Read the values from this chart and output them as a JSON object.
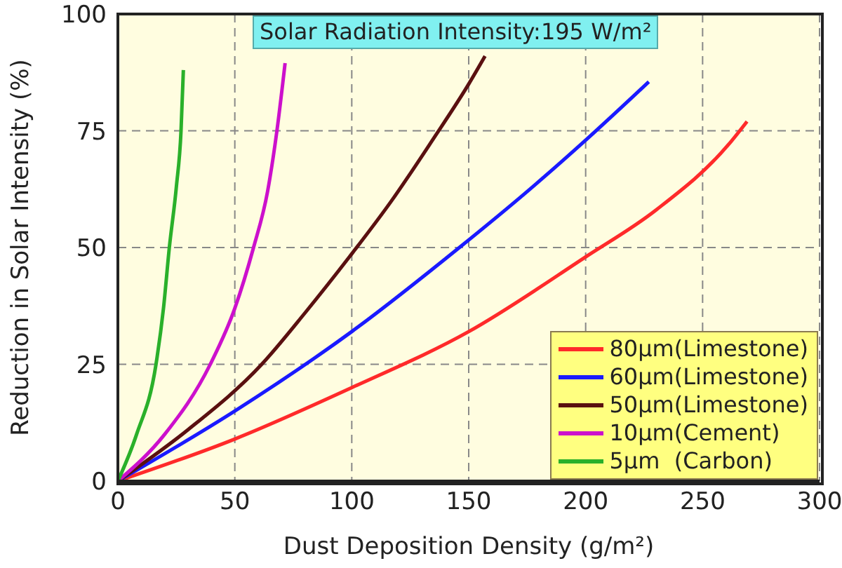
{
  "chart_data": {
    "type": "line",
    "title": "Solar Radiation Intensity:195 W/m²",
    "xlabel": "Dust Deposition Density (g/m²)",
    "ylabel": "Reduction in Solar Intensity (%)",
    "xlim": [
      0,
      300
    ],
    "ylim": [
      0,
      100
    ],
    "xticks": [
      0,
      50,
      100,
      150,
      200,
      250,
      300
    ],
    "yticks": [
      0,
      25,
      50,
      75,
      100
    ],
    "grid": true,
    "legend": "bottom right",
    "marker": "none",
    "line_style": "solid",
    "series": [
      {
        "name": "80μm(Limestone)",
        "color": "#ff2a2a",
        "x": [
          0,
          50,
          100,
          150,
          200,
          230,
          261,
          269
        ],
        "values": [
          0,
          9,
          20,
          32,
          48,
          58,
          72,
          77
        ]
      },
      {
        "name": "60μm(Limestone)",
        "color": "#1a1aff",
        "x": [
          0,
          50,
          100,
          146,
          175,
          200,
          227
        ],
        "values": [
          0,
          15,
          32,
          50,
          62,
          73,
          85.5
        ]
      },
      {
        "name": "50μm(Limestone)",
        "color": "#5a1010",
        "x": [
          0,
          30,
          61.5,
          80,
          99,
          117,
          134.5,
          150,
          157
        ],
        "values": [
          0,
          11,
          25,
          36,
          48,
          60,
          73,
          85,
          91
        ]
      },
      {
        "name": "10μm(Cement)",
        "color": "#cc10cc",
        "x": [
          0,
          20,
          39.5,
          50,
          58,
          64,
          68,
          71.5
        ],
        "values": [
          0,
          10,
          25,
          37,
          50,
          62,
          75,
          89.5
        ]
      },
      {
        "name": "5μm  (Carbon)",
        "color": "#2ab02a",
        "x": [
          0,
          8,
          16.3,
          19.5,
          22,
          25,
          27,
          28
        ],
        "values": [
          0,
          10,
          25,
          37,
          50,
          63,
          75,
          88
        ]
      }
    ]
  }
}
